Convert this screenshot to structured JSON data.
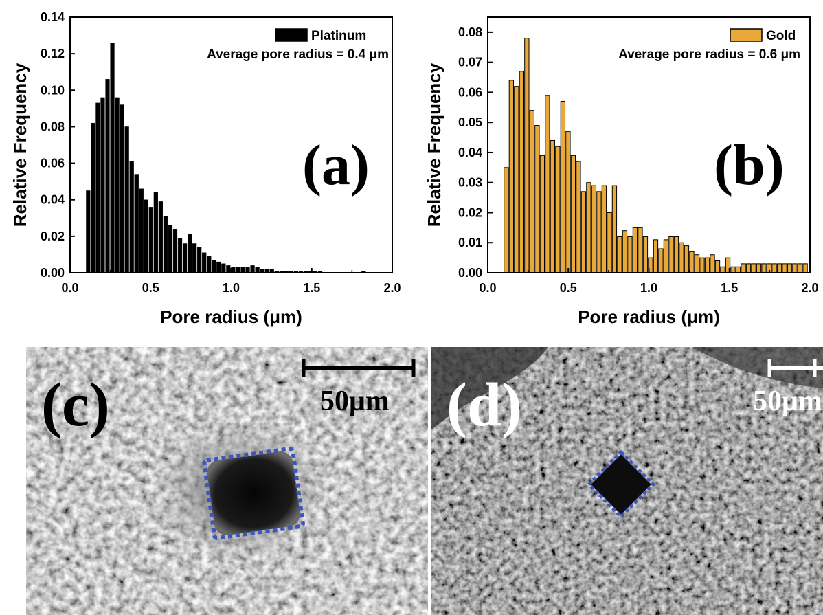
{
  "chart_data": [
    {
      "type": "bar",
      "panel_label": "(a)",
      "legend": {
        "series_name": "Platinum",
        "placement": "top-right",
        "note": "Average pore radius = 0.4 μm"
      },
      "xlabel": "Pore radius (μm)",
      "ylabel": "Relative Frequency",
      "xlim": [
        0.0,
        2.0
      ],
      "ylim": [
        0.0,
        0.14
      ],
      "x_ticks": [
        "0.0",
        "0.5",
        "1.0",
        "1.5",
        "2.0"
      ],
      "y_ticks": [
        "0.00",
        "0.02",
        "0.04",
        "0.06",
        "0.08",
        "0.10",
        "0.12",
        "0.14"
      ],
      "bar_width": 0.03,
      "color": "#000000",
      "x": [
        0.115,
        0.145,
        0.175,
        0.205,
        0.235,
        0.265,
        0.295,
        0.325,
        0.355,
        0.385,
        0.415,
        0.445,
        0.475,
        0.505,
        0.535,
        0.565,
        0.595,
        0.625,
        0.655,
        0.685,
        0.715,
        0.745,
        0.775,
        0.805,
        0.835,
        0.865,
        0.895,
        0.925,
        0.955,
        0.985,
        1.015,
        1.045,
        1.075,
        1.105,
        1.135,
        1.165,
        1.195,
        1.225,
        1.255,
        1.285,
        1.315,
        1.345,
        1.375,
        1.405,
        1.435,
        1.465,
        1.495,
        1.525,
        1.555,
        1.585,
        1.615,
        1.645,
        1.675,
        1.705,
        1.735,
        1.765,
        1.795,
        1.825
      ],
      "values": [
        0.045,
        0.082,
        0.093,
        0.096,
        0.106,
        0.126,
        0.096,
        0.092,
        0.08,
        0.061,
        0.054,
        0.046,
        0.04,
        0.036,
        0.044,
        0.039,
        0.031,
        0.026,
        0.024,
        0.019,
        0.016,
        0.021,
        0.016,
        0.014,
        0.011,
        0.009,
        0.007,
        0.006,
        0.005,
        0.004,
        0.003,
        0.003,
        0.003,
        0.003,
        0.004,
        0.003,
        0.002,
        0.002,
        0.002,
        0.001,
        0.001,
        0.001,
        0.001,
        0.001,
        0.001,
        0.001,
        0.001,
        0.001,
        0.001,
        0.0,
        0.0,
        0.0,
        0.0,
        0.0,
        0.0,
        0.0,
        0.0,
        0.001
      ],
      "grid": false
    },
    {
      "type": "bar",
      "panel_label": "(b)",
      "legend": {
        "series_name": "Gold",
        "placement": "top-right",
        "note": "Average pore radius = 0.6 μm"
      },
      "xlabel": "Pore radius (μm)",
      "ylabel": "Relative Frequency",
      "xlim": [
        0.0,
        2.0
      ],
      "ylim": [
        0.0,
        0.085
      ],
      "x_ticks": [
        "0.0",
        "0.5",
        "1.0",
        "1.5",
        "2.0"
      ],
      "y_ticks": [
        "0.00",
        "0.01",
        "0.02",
        "0.03",
        "0.04",
        "0.05",
        "0.06",
        "0.07",
        "0.08"
      ],
      "bar_width": 0.032,
      "color": "#E8A93A",
      "x": [
        0.117,
        0.149,
        0.181,
        0.213,
        0.245,
        0.277,
        0.309,
        0.341,
        0.373,
        0.405,
        0.437,
        0.469,
        0.501,
        0.533,
        0.565,
        0.597,
        0.629,
        0.661,
        0.693,
        0.725,
        0.757,
        0.789,
        0.821,
        0.853,
        0.885,
        0.917,
        0.949,
        0.981,
        1.013,
        1.045,
        1.077,
        1.109,
        1.141,
        1.173,
        1.205,
        1.237,
        1.269,
        1.301,
        1.333,
        1.365,
        1.397,
        1.429,
        1.461,
        1.493,
        1.525,
        1.557,
        1.589,
        1.621,
        1.653,
        1.685,
        1.717,
        1.749,
        1.781,
        1.813,
        1.845,
        1.877,
        1.909,
        1.941,
        1.973
      ],
      "values": [
        0.035,
        0.064,
        0.062,
        0.067,
        0.078,
        0.054,
        0.049,
        0.039,
        0.059,
        0.044,
        0.042,
        0.057,
        0.047,
        0.039,
        0.037,
        0.027,
        0.03,
        0.029,
        0.027,
        0.029,
        0.02,
        0.029,
        0.012,
        0.014,
        0.012,
        0.015,
        0.015,
        0.012,
        0.005,
        0.011,
        0.008,
        0.011,
        0.012,
        0.012,
        0.01,
        0.009,
        0.007,
        0.006,
        0.005,
        0.005,
        0.006,
        0.004,
        0.002,
        0.005,
        0.002,
        0.002,
        0.003,
        0.003,
        0.003,
        0.003,
        0.003,
        0.003,
        0.003,
        0.003,
        0.003,
        0.003,
        0.003,
        0.003,
        0.003
      ],
      "grid": false
    }
  ],
  "micrographs": [
    {
      "label": "(c)",
      "scale_bar": "50μm",
      "material": "Platinum"
    },
    {
      "label": "(d)",
      "scale_bar": "50μm",
      "material": "Gold"
    }
  ],
  "colors": {
    "pore_outline": "#3f55b8",
    "gold_bar": "#E8A93A",
    "platinum_bar": "#000000"
  }
}
